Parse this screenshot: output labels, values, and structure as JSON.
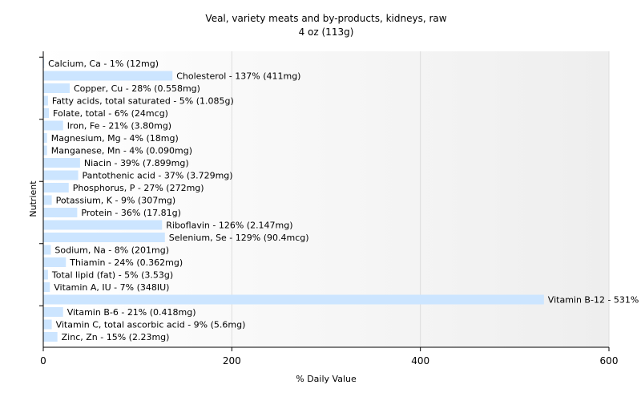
{
  "chart_data": {
    "type": "bar",
    "orientation": "horizontal",
    "title": "Veal, variety meats and by-products, kidneys, raw",
    "subtitle": "4 oz (113g)",
    "xlabel": "% Daily Value",
    "ylabel": "Nutrient",
    "xlim": [
      0,
      600
    ],
    "xticks": [
      0,
      200,
      400,
      600
    ],
    "grid": true,
    "bar_color": "#cce5ff",
    "categories": [
      "Calcium, Ca",
      "Cholesterol",
      "Copper, Cu",
      "Fatty acids, total saturated",
      "Folate, total",
      "Iron, Fe",
      "Magnesium, Mg",
      "Manganese, Mn",
      "Niacin",
      "Pantothenic acid",
      "Phosphorus, P",
      "Potassium, K",
      "Protein",
      "Riboflavin",
      "Selenium, Se",
      "Sodium, Na",
      "Thiamin",
      "Total lipid (fat)",
      "Vitamin A, IU",
      "Vitamin B-12",
      "Vitamin B-6",
      "Vitamin C, total ascorbic acid",
      "Zinc, Zn"
    ],
    "values": [
      1,
      137,
      28,
      5,
      6,
      21,
      4,
      4,
      39,
      37,
      27,
      9,
      36,
      126,
      129,
      8,
      24,
      5,
      7,
      531,
      21,
      9,
      15
    ],
    "labels": [
      "Calcium, Ca - 1% (12mg)",
      "Cholesterol - 137% (411mg)",
      "Copper, Cu - 28% (0.558mg)",
      "Fatty acids, total saturated - 5% (1.085g)",
      "Folate, total - 6% (24mcg)",
      "Iron, Fe - 21% (3.80mg)",
      "Magnesium, Mg - 4% (18mg)",
      "Manganese, Mn - 4% (0.090mg)",
      "Niacin - 39% (7.899mg)",
      "Pantothenic acid - 37% (3.729mg)",
      "Phosphorus, P - 27% (272mg)",
      "Potassium, K - 9% (307mg)",
      "Protein - 36% (17.81g)",
      "Riboflavin - 126% (2.147mg)",
      "Selenium, Se - 129% (90.4mcg)",
      "Sodium, Na - 8% (201mg)",
      "Thiamin - 24% (0.362mg)",
      "Total lipid (fat) - 5% (3.53g)",
      "Vitamin A, IU - 7% (348IU)",
      "Vitamin B-12 - 531% (31.87mcg)",
      "Vitamin B-6 - 21% (0.418mg)",
      "Vitamin C, total ascorbic acid - 9% (5.6mg)",
      "Zinc, Zn - 15% (2.23mg)"
    ]
  }
}
